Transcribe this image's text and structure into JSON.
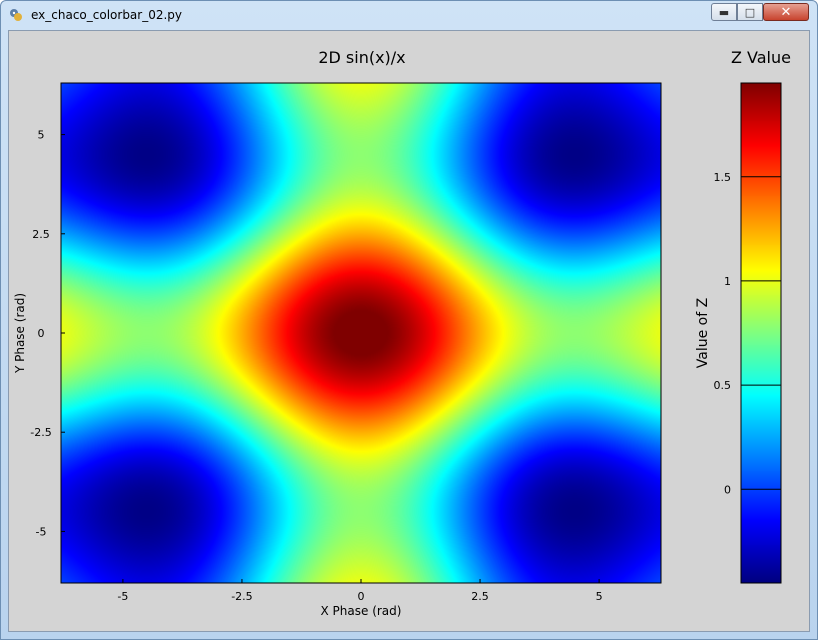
{
  "window": {
    "title": "ex_chaco_colorbar_02.py",
    "controls": {
      "minimize_icon": "minimize-icon",
      "maximize_icon": "maximize-icon",
      "close_icon": "close-icon"
    }
  },
  "chart_data": [
    {
      "type": "heatmap",
      "title": "2D sin(x)/x",
      "xlabel": "X Phase (rad)",
      "ylabel": "Y Phase (rad)",
      "xlim": [
        -6.3,
        6.3
      ],
      "ylim": [
        -6.3,
        6.3
      ],
      "xticks": [
        {
          "value": -5,
          "label": "-5"
        },
        {
          "value": -2.5,
          "label": "-2.5"
        },
        {
          "value": 0,
          "label": "0"
        },
        {
          "value": 2.5,
          "label": "2.5"
        },
        {
          "value": 5,
          "label": "5"
        }
      ],
      "yticks": [
        {
          "value": 5,
          "label": "5"
        },
        {
          "value": 2.5,
          "label": "2.5"
        },
        {
          "value": 0,
          "label": "0"
        },
        {
          "value": -2.5,
          "label": "-2.5"
        },
        {
          "value": -5,
          "label": "-5"
        }
      ],
      "colormap": "jet",
      "zlim": [
        -0.45,
        1.95
      ],
      "function": "sin(x)/x + sin(y)/y",
      "grid": false
    },
    {
      "type": "colorbar",
      "title": "Z Value",
      "ylabel": "Value of Z",
      "ylim": [
        -0.45,
        1.95
      ],
      "ticks": [
        {
          "value": 1.5,
          "label": "1.5"
        },
        {
          "value": 1,
          "label": "1"
        },
        {
          "value": 0.5,
          "label": "0.5"
        },
        {
          "value": 0,
          "label": "0"
        }
      ],
      "colormap": "jet"
    }
  ]
}
